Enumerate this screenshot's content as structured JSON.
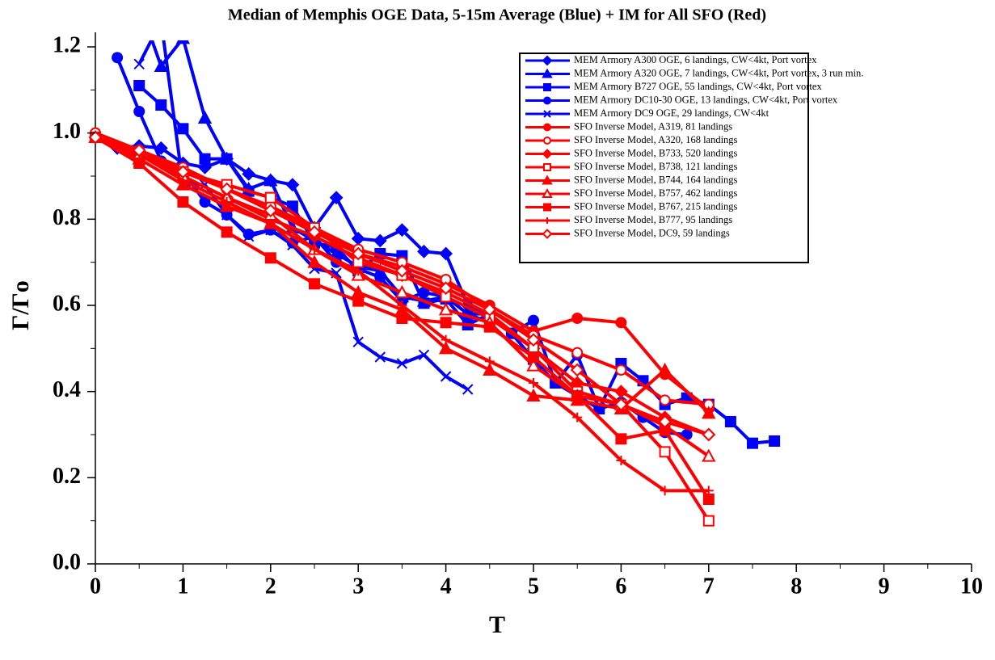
{
  "chart_data": {
    "type": "line",
    "title": "Median of Memphis OGE Data, 5-15m Average (Blue) + IM for All SFO (Red)",
    "x_label": "T",
    "y_label": "Γ/Γo",
    "xlim": [
      0,
      10
    ],
    "xticks": [
      0,
      1,
      2,
      3,
      4,
      5,
      6,
      7,
      8,
      9,
      10
    ],
    "xminorticks": [
      0.5,
      1.5,
      2.5,
      3.5,
      4.5,
      5.5,
      6.5,
      7.5,
      8.5,
      9.5
    ],
    "ylim": [
      0,
      1.2
    ],
    "yticks": [
      {
        "value": 0,
        "label": "0.0"
      },
      0.2,
      0.4,
      0.6,
      0.8,
      {
        "value": 1,
        "label": "1.0"
      },
      1.2
    ],
    "yminorticks": [
      0.1,
      0.3,
      0.5,
      0.7,
      0.9,
      1.1
    ],
    "legend": "top-right",
    "series": [
      {
        "name": "MEM Armory A300 OGE, 6 landings, CW<4kt, Port vortex",
        "color": "#0000ff",
        "marker": "diamond",
        "filled": true,
        "x": [
          0.25,
          0.5,
          0.75,
          1,
          1.25,
          1.5,
          1.75,
          2,
          2.25,
          2.5,
          2.75,
          3,
          3.25,
          3.5,
          3.75,
          4,
          4.25,
          4.5
        ],
        "values": [
          0.965,
          0.97,
          0.965,
          0.93,
          0.92,
          0.94,
          0.905,
          0.89,
          0.88,
          0.78,
          0.85,
          0.755,
          0.75,
          0.775,
          0.725,
          0.72,
          0.6,
          0.58
        ]
      },
      {
        "name": "MEM Armory A320 OGE, 7 landings, CW<4kt, Port vortex, 3 run min.",
        "color": "#0000ff",
        "marker": "triangle",
        "filled": true,
        "x": [
          0.5,
          0.75,
          1,
          1.25,
          1.5,
          1.75,
          2,
          2.25,
          2.5,
          2.75,
          3,
          3.25,
          3.5,
          3.75,
          4,
          4.25,
          4.5
        ],
        "values": [
          1.3,
          1.155,
          1.22,
          1.035,
          0.94,
          0.87,
          0.89,
          0.78,
          0.75,
          0.72,
          0.69,
          0.68,
          0.62,
          0.61,
          0.62,
          0.58,
          0.56
        ]
      },
      {
        "name": "MEM Armory B727 OGE, 55 landings, CW<4kt, Port vortex",
        "color": "#0000ff",
        "marker": "square",
        "filled": true,
        "x": [
          0.5,
          0.75,
          1,
          1.25,
          1.5,
          1.75,
          2,
          2.25,
          2.5,
          2.75,
          3,
          3.25,
          3.5,
          3.75,
          4,
          4.25,
          4.5,
          4.75,
          5,
          5.25,
          5.5,
          5.75,
          6,
          6.25,
          6.5,
          6.75,
          7,
          7.25,
          7.5,
          7.75
        ],
        "values": [
          1.11,
          1.065,
          1.01,
          0.94,
          0.94,
          0.865,
          0.85,
          0.83,
          0.745,
          0.735,
          0.68,
          0.72,
          0.715,
          0.605,
          0.615,
          0.555,
          0.58,
          0.535,
          0.475,
          0.42,
          0.39,
          0.36,
          0.465,
          0.425,
          0.37,
          0.385,
          0.37,
          0.33,
          0.28,
          0.285
        ]
      },
      {
        "name": "MEM Armory DC10-30 OGE, 13 landings, CW<4kt, Port vortex",
        "color": "#0000ff",
        "marker": "circle",
        "filled": true,
        "x": [
          0.25,
          0.5,
          0.75,
          1,
          1.25,
          1.5,
          1.75,
          2,
          2.25,
          2.5,
          2.75,
          3,
          3.25,
          3.5,
          3.75,
          4,
          4.25,
          4.5,
          4.75,
          5,
          5.25,
          5.5,
          5.75,
          6,
          6.25,
          6.5,
          6.75
        ],
        "values": [
          1.175,
          1.05,
          0.935,
          0.91,
          0.84,
          0.81,
          0.765,
          0.775,
          0.745,
          0.76,
          0.7,
          0.685,
          0.665,
          0.61,
          0.63,
          0.62,
          0.58,
          0.58,
          0.535,
          0.565,
          0.42,
          0.485,
          0.36,
          0.375,
          0.34,
          0.305,
          0.3
        ]
      },
      {
        "name": "MEM Armory DC9 OGE, 29 landings, CW<4kt",
        "color": "#0000ff",
        "marker": "x",
        "filled": true,
        "x": [
          0.5,
          0.75,
          1,
          1.25,
          1.5,
          1.75,
          2,
          2.25,
          2.5,
          2.75,
          3,
          3.25,
          3.5,
          3.75,
          4,
          4.25
        ],
        "values": [
          1.16,
          1.26,
          0.88,
          0.88,
          0.81,
          0.76,
          0.775,
          0.74,
          0.685,
          0.675,
          0.515,
          0.48,
          0.465,
          0.485,
          0.435,
          0.405
        ]
      },
      {
        "name": "SFO Inverse Model, A319, 81 landings",
        "color": "#ff0000",
        "marker": "circle",
        "filled": true,
        "x": [
          0,
          0.5,
          1,
          1.5,
          2,
          2.5,
          3,
          3.5,
          4,
          4.5,
          5,
          5.5,
          6,
          6.5,
          7
        ],
        "values": [
          1.0,
          0.96,
          0.91,
          0.87,
          0.82,
          0.78,
          0.72,
          0.69,
          0.65,
          0.6,
          0.54,
          0.57,
          0.56,
          0.44,
          0.36
        ]
      },
      {
        "name": "SFO Inverse Model, A320, 168 landings",
        "color": "#ff0000",
        "marker": "circle",
        "filled": false,
        "x": [
          0,
          0.5,
          1,
          1.5,
          2,
          2.5,
          3,
          3.5,
          4,
          4.5,
          5,
          5.5,
          6,
          6.5,
          7
        ],
        "values": [
          1.0,
          0.96,
          0.92,
          0.87,
          0.83,
          0.78,
          0.73,
          0.7,
          0.66,
          0.59,
          0.53,
          0.49,
          0.45,
          0.38,
          0.37
        ]
      },
      {
        "name": "SFO Inverse Model, B733, 520 landings",
        "color": "#ff0000",
        "marker": "diamond",
        "filled": true,
        "x": [
          0,
          0.5,
          1,
          1.5,
          2,
          2.5,
          3,
          3.5,
          4,
          4.5,
          5,
          5.5,
          6,
          6.5,
          7
        ],
        "values": [
          0.99,
          0.95,
          0.9,
          0.85,
          0.8,
          0.76,
          0.71,
          0.67,
          0.63,
          0.58,
          0.5,
          0.42,
          0.4,
          0.34,
          0.3
        ]
      },
      {
        "name": "SFO Inverse Model, B738, 121 landings",
        "color": "#ff0000",
        "marker": "square",
        "filled": false,
        "x": [
          0,
          0.5,
          1,
          1.5,
          2,
          2.5,
          3,
          3.5,
          4,
          4.5,
          5,
          5.5,
          6,
          6.5,
          7
        ],
        "values": [
          0.99,
          0.95,
          0.91,
          0.88,
          0.85,
          0.78,
          0.7,
          0.67,
          0.62,
          0.57,
          0.5,
          0.4,
          0.37,
          0.26,
          0.1
        ]
      },
      {
        "name": "SFO Inverse Model, B744, 164 landings",
        "color": "#ff0000",
        "marker": "triangle",
        "filled": true,
        "x": [
          0,
          0.5,
          1,
          1.5,
          2,
          2.5,
          3,
          3.5,
          4,
          4.5,
          5,
          5.5,
          6,
          6.5,
          7
        ],
        "values": [
          0.99,
          0.94,
          0.88,
          0.83,
          0.79,
          0.7,
          0.63,
          0.59,
          0.5,
          0.45,
          0.39,
          0.38,
          0.36,
          0.45,
          0.35
        ]
      },
      {
        "name": "SFO Inverse Model, B757, 462 landings",
        "color": "#ff0000",
        "marker": "triangle",
        "filled": false,
        "x": [
          0,
          0.5,
          1,
          1.5,
          2,
          2.5,
          3,
          3.5,
          4,
          4.5,
          5,
          5.5,
          6,
          6.5,
          7
        ],
        "values": [
          0.99,
          0.95,
          0.9,
          0.85,
          0.81,
          0.73,
          0.67,
          0.63,
          0.59,
          0.56,
          0.46,
          0.39,
          0.37,
          0.32,
          0.25
        ]
      },
      {
        "name": "SFO Inverse Model, B767, 215 landings",
        "color": "#ff0000",
        "marker": "square",
        "filled": true,
        "x": [
          0,
          0.5,
          1,
          1.5,
          2,
          2.5,
          3,
          3.5,
          4,
          4.5,
          5,
          5.5,
          6,
          6.5,
          7
        ],
        "values": [
          0.99,
          0.93,
          0.84,
          0.77,
          0.71,
          0.65,
          0.61,
          0.57,
          0.56,
          0.55,
          0.48,
          0.39,
          0.29,
          0.31,
          0.15
        ]
      },
      {
        "name": "SFO Inverse Model, B777, 95 landings",
        "color": "#ff0000",
        "marker": "plus",
        "filled": true,
        "x": [
          0,
          0.5,
          1,
          1.5,
          2,
          2.5,
          3,
          3.5,
          4,
          4.5,
          5,
          5.5,
          6,
          6.5,
          7
        ],
        "values": [
          0.99,
          0.95,
          0.89,
          0.84,
          0.79,
          0.73,
          0.68,
          0.6,
          0.52,
          0.47,
          0.42,
          0.34,
          0.24,
          0.17,
          0.17
        ]
      },
      {
        "name": "SFO Inverse Model, DC9, 59 landings",
        "color": "#ff0000",
        "marker": "diamond",
        "filled": false,
        "x": [
          0,
          0.5,
          1,
          1.5,
          2,
          2.5,
          3,
          3.5,
          4,
          4.5,
          5,
          5.5,
          6,
          6.5,
          7
        ],
        "values": [
          0.99,
          0.96,
          0.91,
          0.87,
          0.82,
          0.77,
          0.72,
          0.68,
          0.64,
          0.59,
          0.52,
          0.45,
          0.37,
          0.33,
          0.3
        ]
      }
    ]
  }
}
